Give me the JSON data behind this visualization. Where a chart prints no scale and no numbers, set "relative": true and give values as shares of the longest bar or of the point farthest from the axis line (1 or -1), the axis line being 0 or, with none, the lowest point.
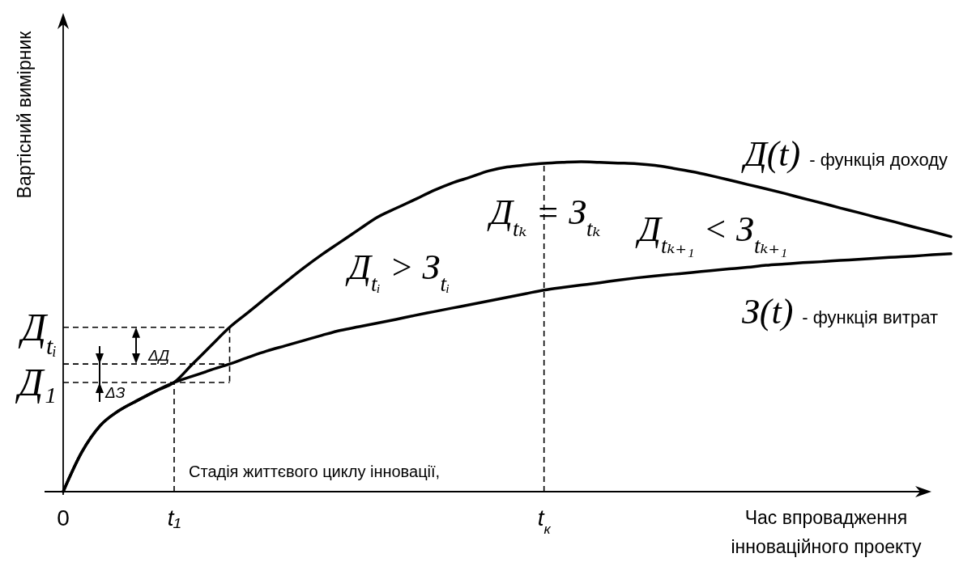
{
  "chart_data": {
    "type": "line",
    "relative": true,
    "ylabel": "Вартісний вимірник",
    "xlabel": "Час впровадження інноваційного проекту",
    "categories": [
      "0",
      null,
      null,
      null,
      null,
      null,
      "t₁",
      null,
      null,
      null,
      null,
      null,
      null,
      null,
      null,
      null,
      null,
      null,
      null,
      null,
      null,
      null,
      null,
      null,
      null,
      null,
      "t$_{к}$",
      null,
      null,
      null,
      null,
      null,
      null,
      null,
      null,
      null,
      null,
      null,
      null,
      null,
      null,
      null,
      null,
      null,
      null,
      null,
      null,
      null,
      null
    ],
    "series": [
      {
        "name": "Д(t) - функція доходу",
        "color": "#000000",
        "values": [
          0,
          0.119,
          0.2,
          0.245,
          0.276,
          0.305,
          0.331,
          0.387,
          0.443,
          0.498,
          0.543,
          0.589,
          0.634,
          0.678,
          0.719,
          0.757,
          0.795,
          0.832,
          0.859,
          0.885,
          0.912,
          0.935,
          0.953,
          0.972,
          0.984,
          0.99,
          0.995,
          0.998,
          1.0,
          0.998,
          0.996,
          0.994,
          0.989,
          0.98,
          0.97,
          0.958,
          0.945,
          0.931,
          0.918,
          0.904,
          0.889,
          0.875,
          0.86,
          0.846,
          0.831,
          0.817,
          0.802,
          0.788,
          0.773
        ]
      },
      {
        "name": "З(t) - функція витрат",
        "color": "#000000",
        "values": [
          0,
          0.119,
          0.2,
          0.245,
          0.276,
          0.305,
          0.331,
          0.35,
          0.369,
          0.387,
          0.407,
          0.426,
          0.442,
          0.458,
          0.474,
          0.489,
          0.5,
          0.511,
          0.522,
          0.534,
          0.545,
          0.556,
          0.567,
          0.578,
          0.589,
          0.6,
          0.611,
          0.619,
          0.626,
          0.633,
          0.641,
          0.648,
          0.654,
          0.659,
          0.664,
          0.67,
          0.675,
          0.68,
          0.686,
          0.69,
          0.694,
          0.697,
          0.701,
          0.704,
          0.708,
          0.711,
          0.714,
          0.718,
          0.721
        ]
      }
    ],
    "ref_lines": [
      {
        "axis": "x",
        "value": "t₁",
        "line_style": "dashed"
      },
      {
        "axis": "x",
        "value": "t$_{к}$",
        "line_style": "dashed"
      },
      {
        "axis": "y",
        "value": 0.498,
        "label": "Д$_{tᵢ}$",
        "line_style": "dashed"
      },
      {
        "axis": "y",
        "value": 0.387,
        "line_style": "dashed"
      },
      {
        "axis": "y",
        "value": 0.331,
        "label": "Д₁",
        "line_style": "dashed"
      }
    ],
    "annotations": [
      "Д$_{tᵢ}$ > З$_{tᵢ}$",
      "Д$_{tₖ}$ = З$_{tₖ}$",
      "Д$_{tₖ₊₁}$ < З$_{tₖ₊₁}$",
      "ΔД",
      "ΔЗ",
      "Стадія життєвого циклу інновації,"
    ]
  }
}
